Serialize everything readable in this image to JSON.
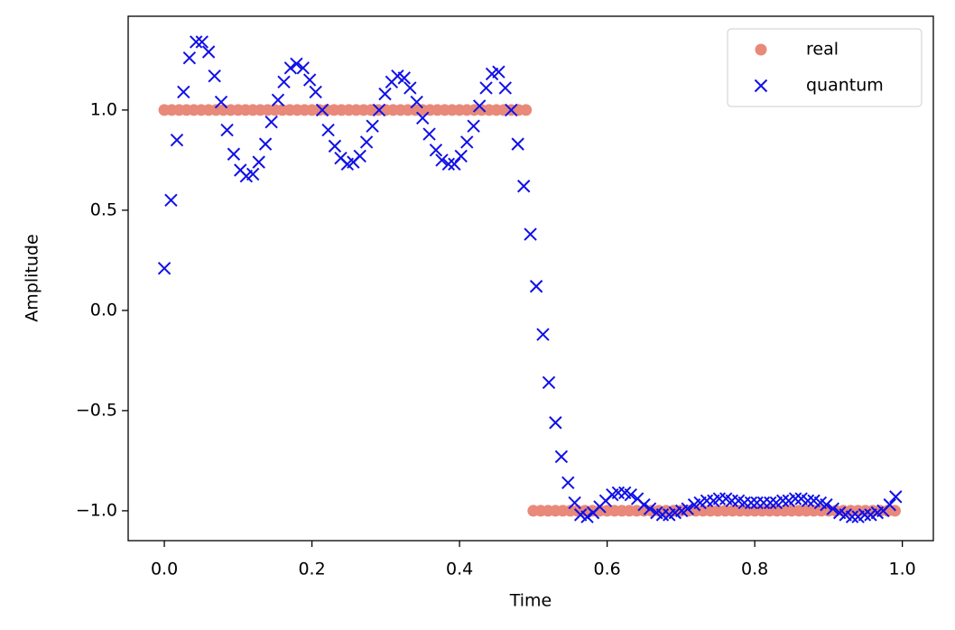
{
  "chart_data": {
    "type": "scatter",
    "x_label": "Time",
    "y_label": "Amplitude",
    "xlim": [
      -0.049,
      1.042
    ],
    "ylim": [
      -1.149,
      1.468
    ],
    "xticks": [
      {
        "value": 0,
        "label": "0.0"
      },
      0.2,
      0.4,
      0.6,
      0.8,
      {
        "value": 1,
        "label": "1.0"
      }
    ],
    "yticks": [
      {
        "value": -1,
        "label": "−1.0"
      },
      {
        "value": -0.5,
        "label": "−0.5"
      },
      {
        "value": 0,
        "label": "0.0"
      },
      0.5,
      {
        "value": 1,
        "label": "1.0"
      }
    ],
    "legend": "upper right",
    "series": [
      {
        "name": "real",
        "color": "#e8897a",
        "marker": "o",
        "x": [
          0,
          0.01,
          0.02,
          0.03,
          0.04,
          0.05,
          0.06,
          0.07,
          0.08,
          0.09,
          0.1,
          0.11,
          0.12,
          0.13,
          0.14,
          0.15,
          0.16,
          0.17,
          0.18,
          0.19,
          0.2,
          0.21,
          0.22,
          0.23,
          0.24,
          0.25,
          0.26,
          0.27,
          0.28,
          0.29,
          0.3,
          0.31,
          0.32,
          0.33,
          0.34,
          0.35,
          0.36,
          0.37,
          0.38,
          0.39,
          0.4,
          0.41,
          0.42,
          0.43,
          0.44,
          0.45,
          0.46,
          0.47,
          0.48,
          0.49,
          0.5,
          0.51,
          0.52,
          0.53,
          0.54,
          0.55,
          0.56,
          0.57,
          0.58,
          0.59,
          0.6,
          0.61,
          0.62,
          0.63,
          0.64,
          0.65,
          0.66,
          0.67,
          0.68,
          0.69,
          0.7,
          0.71,
          0.72,
          0.73,
          0.74,
          0.75,
          0.76,
          0.77,
          0.78,
          0.79,
          0.8,
          0.81,
          0.82,
          0.83,
          0.84,
          0.85,
          0.86,
          0.87,
          0.88,
          0.89,
          0.9,
          0.91,
          0.92,
          0.93,
          0.94,
          0.95,
          0.96,
          0.97,
          0.98,
          0.99
        ],
        "values": [
          1,
          1,
          1,
          1,
          1,
          1,
          1,
          1,
          1,
          1,
          1,
          1,
          1,
          1,
          1,
          1,
          1,
          1,
          1,
          1,
          1,
          1,
          1,
          1,
          1,
          1,
          1,
          1,
          1,
          1,
          1,
          1,
          1,
          1,
          1,
          1,
          1,
          1,
          1,
          1,
          1,
          1,
          1,
          1,
          1,
          1,
          1,
          1,
          1,
          1,
          -1,
          -1,
          -1,
          -1,
          -1,
          -1,
          -1,
          -1,
          -1,
          -1,
          -1,
          -1,
          -1,
          -1,
          -1,
          -1,
          -1,
          -1,
          -1,
          -1,
          -1,
          -1,
          -1,
          -1,
          -1,
          -1,
          -1,
          -1,
          -1,
          -1,
          -1,
          -1,
          -1,
          -1,
          -1,
          -1,
          -1,
          -1,
          -1,
          -1,
          -1,
          -1,
          -1,
          -1,
          -1,
          -1,
          -1,
          -1,
          -1,
          -1
        ]
      },
      {
        "name": "quantum",
        "color": "#1010e8",
        "marker": "x",
        "x": [
          0,
          0.009,
          0.017,
          0.026,
          0.034,
          0.043,
          0.051,
          0.06,
          0.068,
          0.077,
          0.085,
          0.094,
          0.103,
          0.111,
          0.12,
          0.128,
          0.137,
          0.145,
          0.154,
          0.162,
          0.171,
          0.179,
          0.188,
          0.197,
          0.205,
          0.214,
          0.222,
          0.231,
          0.239,
          0.248,
          0.256,
          0.265,
          0.274,
          0.282,
          0.291,
          0.299,
          0.308,
          0.316,
          0.325,
          0.333,
          0.342,
          0.35,
          0.359,
          0.368,
          0.376,
          0.385,
          0.393,
          0.402,
          0.41,
          0.419,
          0.427,
          0.436,
          0.444,
          0.453,
          0.462,
          0.47,
          0.479,
          0.487,
          0.496,
          0.504,
          0.513,
          0.521,
          0.53,
          0.538,
          0.547,
          0.556,
          0.564,
          0.573,
          0.581,
          0.59,
          0.598,
          0.607,
          0.615,
          0.624,
          0.632,
          0.641,
          0.65,
          0.658,
          0.667,
          0.675,
          0.684,
          0.692,
          0.701,
          0.709,
          0.718,
          0.726,
          0.735,
          0.744,
          0.752,
          0.761,
          0.769,
          0.778,
          0.786,
          0.795,
          0.803,
          0.812,
          0.821,
          0.829,
          0.838,
          0.846,
          0.855,
          0.863,
          0.872,
          0.88,
          0.889,
          0.897,
          0.906,
          0.915,
          0.923,
          0.932,
          0.94,
          0.949,
          0.957,
          0.966,
          0.974,
          0.983,
          0.991
        ],
        "values": [
          0.21,
          0.55,
          0.85,
          1.09,
          1.26,
          1.34,
          1.34,
          1.29,
          1.17,
          1.04,
          0.9,
          0.78,
          0.7,
          0.67,
          0.68,
          0.74,
          0.83,
          0.94,
          1.05,
          1.14,
          1.21,
          1.23,
          1.21,
          1.15,
          1.09,
          1.0,
          0.9,
          0.82,
          0.76,
          0.73,
          0.74,
          0.77,
          0.84,
          0.92,
          1.0,
          1.08,
          1.14,
          1.17,
          1.16,
          1.11,
          1.04,
          0.96,
          0.88,
          0.8,
          0.75,
          0.73,
          0.73,
          0.77,
          0.84,
          0.92,
          1.02,
          1.11,
          1.18,
          1.19,
          1.11,
          1.0,
          0.83,
          0.62,
          0.38,
          0.12,
          -0.12,
          -0.36,
          -0.56,
          -0.73,
          -0.86,
          -0.96,
          -1.02,
          -1.03,
          -1.01,
          -0.98,
          -0.95,
          -0.92,
          -0.91,
          -0.91,
          -0.92,
          -0.94,
          -0.97,
          -0.99,
          -1.01,
          -1.02,
          -1.02,
          -1.01,
          -1.0,
          -0.99,
          -0.97,
          -0.96,
          -0.95,
          -0.95,
          -0.94,
          -0.94,
          -0.95,
          -0.95,
          -0.96,
          -0.96,
          -0.96,
          -0.96,
          -0.96,
          -0.96,
          -0.95,
          -0.95,
          -0.94,
          -0.94,
          -0.95,
          -0.95,
          -0.96,
          -0.97,
          -0.99,
          -1.01,
          -1.02,
          -1.03,
          -1.03,
          -1.02,
          -1.02,
          -1.01,
          -1.0,
          -0.97,
          -0.93
        ]
      }
    ]
  }
}
